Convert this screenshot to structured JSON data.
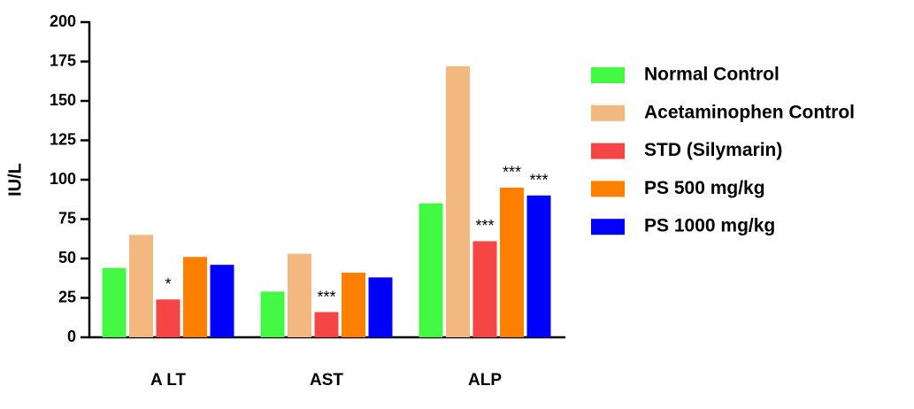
{
  "chart_data": {
    "type": "bar",
    "y_label": "IU/L",
    "categories": [
      "A LT",
      "AST",
      "ALP"
    ],
    "series": [
      {
        "name": "Normal Control",
        "color": "#44f944",
        "values": [
          44,
          29,
          85
        ]
      },
      {
        "name": "Acetaminophen Control",
        "color": "#f2b880",
        "values": [
          65,
          53,
          172
        ]
      },
      {
        "name": "STD (Silymarin)",
        "color": "#f54545",
        "values": [
          24,
          16,
          61
        ],
        "annotations": [
          "*",
          "***",
          "***"
        ]
      },
      {
        "name": "PS 500 mg/kg",
        "color": "#ff8000",
        "values": [
          51,
          41,
          95
        ],
        "annotations": [
          null,
          null,
          "***"
        ]
      },
      {
        "name": "PS 1000 mg/kg",
        "color": "#0000ff",
        "values": [
          46,
          38,
          90
        ],
        "annotations": [
          null,
          null,
          "***"
        ]
      }
    ],
    "ylim": [
      0,
      200
    ],
    "yticks": [
      0,
      25,
      50,
      75,
      100,
      125,
      150,
      175,
      200
    ],
    "legend": "right"
  }
}
